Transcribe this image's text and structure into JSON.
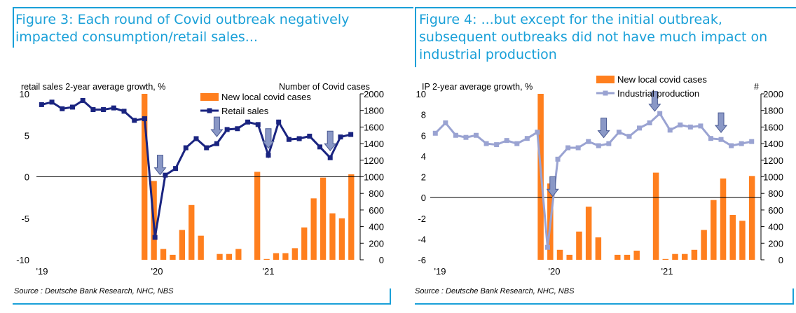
{
  "figures": [
    {
      "title": "Figure 3: Each round of Covid outbreak negatively impacted consumption/retail sales...",
      "source": "Source : Deutsche Bank Research, NHC, NBS"
    },
    {
      "title": "Figure 4: ...but except for the initial outbreak, subsequent outbreaks did not have much impact on industrial production",
      "source": "Source : Deutsche Bank Research, NHC, NBS"
    }
  ],
  "colors": {
    "title": "#1aa0d8",
    "bars": "#ff7f1e",
    "retail_line": "#1a2480",
    "ip_line": "#9aa3d2",
    "arrow": "#8a98c6"
  },
  "chart_data": [
    {
      "type": "bar+line",
      "ylabel_left": "retail sales 2-year average growth, %",
      "ylabel_right": "Number of Covid cases",
      "left_ylim": [
        -10,
        10
      ],
      "left_ticks": [
        "10",
        "5",
        "0",
        "-5",
        "-10"
      ],
      "right_ylim": [
        0,
        2000
      ],
      "right_ticks": [
        "2000",
        "1800",
        "1600",
        "1400",
        "1200",
        "1000",
        "800",
        "600",
        "400",
        "200",
        "0"
      ],
      "x_tick_labels": [
        "'19",
        "'20",
        "'21"
      ],
      "legend": [
        "New local covid cases",
        "Retail sales"
      ],
      "line_name": "Retail sales",
      "bar_name": "New local covid cases",
      "line_values": [
        8.7,
        9.0,
        8.2,
        8.4,
        9.2,
        8.1,
        8.1,
        8.3,
        7.9,
        6.8,
        7.0,
        -7.3,
        0.2,
        1.0,
        3.5,
        4.6,
        3.5,
        4.0,
        5.7,
        5.8,
        6.6,
        6.3,
        2.6,
        6.6,
        4.5,
        4.6,
        4.9,
        3.6,
        2.3,
        4.8,
        5.1
      ],
      "bar_values": [
        0,
        0,
        0,
        0,
        0,
        0,
        0,
        0,
        0,
        0,
        0,
        2000,
        950,
        130,
        60,
        360,
        660,
        290,
        0,
        70,
        70,
        130,
        0,
        1060,
        10,
        80,
        80,
        140,
        390,
        740,
        990,
        560,
        500,
        1030
      ],
      "arrows_at": [
        11.5,
        17,
        22,
        28
      ]
    },
    {
      "type": "bar+line",
      "ylabel_left": "IP 2-year average growth, %",
      "ylabel_right": "#",
      "left_ylim": [
        -6,
        10
      ],
      "left_ticks": [
        "10",
        "8",
        "6",
        "4",
        "2",
        "0",
        "-2",
        "-4",
        "-6"
      ],
      "right_ylim": [
        0,
        2000
      ],
      "right_ticks": [
        "2000",
        "1800",
        "1600",
        "1400",
        "1200",
        "1000",
        "800",
        "600",
        "400",
        "200",
        "0"
      ],
      "x_tick_labels": [
        "'19",
        "'20",
        "'21"
      ],
      "legend": [
        "New local covid cases",
        "Industrial production"
      ],
      "line_name": "Industrial production",
      "bar_name": "New local covid cases",
      "line_values": [
        6.2,
        7.2,
        6.0,
        5.8,
        6.0,
        5.2,
        5.1,
        5.5,
        5.2,
        5.7,
        6.3,
        -4.8,
        3.7,
        4.8,
        4.8,
        5.4,
        5.0,
        5.2,
        6.3,
        5.9,
        6.7,
        7.2,
        8.1,
        6.5,
        7.0,
        6.8,
        6.9,
        5.7,
        5.6,
        5.0,
        5.2,
        5.4
      ],
      "bar_values": [
        0,
        0,
        0,
        0,
        0,
        0,
        0,
        0,
        0,
        0,
        0,
        2000,
        920,
        120,
        60,
        340,
        640,
        270,
        0,
        60,
        60,
        110,
        0,
        1050,
        10,
        70,
        70,
        120,
        360,
        720,
        980,
        540,
        470,
        1010
      ],
      "arrows_at": [
        11.5,
        16.5,
        21.5,
        28
      ]
    }
  ]
}
